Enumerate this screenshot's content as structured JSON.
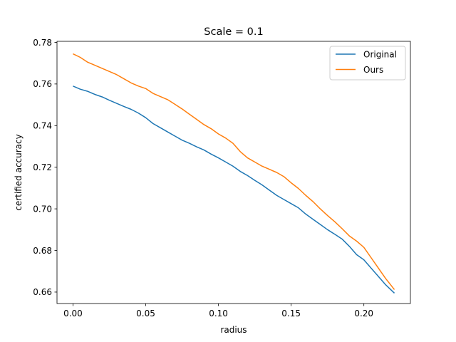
{
  "chart_data": {
    "type": "line",
    "title": "Scale = 0.1",
    "xlabel": "radius",
    "ylabel": "certified accuracy",
    "xlim": [
      -0.011,
      0.232
    ],
    "ylim": [
      0.6545,
      0.7805
    ],
    "xticks": [
      0.0,
      0.05,
      0.1,
      0.15,
      0.2
    ],
    "xtick_labels": [
      "0.00",
      "0.05",
      "0.10",
      "0.15",
      "0.20"
    ],
    "yticks": [
      0.66,
      0.68,
      0.7,
      0.72,
      0.74,
      0.76,
      0.78
    ],
    "ytick_labels": [
      "0.66",
      "0.68",
      "0.70",
      "0.72",
      "0.74",
      "0.76",
      "0.78"
    ],
    "grid": false,
    "legend_position": "top-right",
    "series": [
      {
        "name": "Original",
        "color": "#1f77b4",
        "x": [
          0.0,
          0.005,
          0.01,
          0.015,
          0.02,
          0.025,
          0.03,
          0.035,
          0.04,
          0.045,
          0.05,
          0.055,
          0.06,
          0.065,
          0.07,
          0.075,
          0.08,
          0.085,
          0.09,
          0.095,
          0.1,
          0.105,
          0.11,
          0.115,
          0.12,
          0.125,
          0.13,
          0.135,
          0.14,
          0.145,
          0.15,
          0.155,
          0.16,
          0.165,
          0.17,
          0.175,
          0.18,
          0.185,
          0.19,
          0.195,
          0.2,
          0.205,
          0.21,
          0.215,
          0.221
        ],
        "y": [
          0.759,
          0.7575,
          0.7565,
          0.755,
          0.7538,
          0.7522,
          0.7507,
          0.7492,
          0.7478,
          0.746,
          0.7438,
          0.741,
          0.739,
          0.737,
          0.735,
          0.733,
          0.7315,
          0.7298,
          0.7283,
          0.7263,
          0.7245,
          0.7225,
          0.7205,
          0.718,
          0.716,
          0.7137,
          0.7115,
          0.709,
          0.7065,
          0.7045,
          0.7025,
          0.7005,
          0.6975,
          0.695,
          0.6925,
          0.69,
          0.6878,
          0.6855,
          0.682,
          0.678,
          0.6755,
          0.6715,
          0.6675,
          0.6635,
          0.6595
        ]
      },
      {
        "name": "Ours",
        "color": "#ff7f0e",
        "x": [
          0.0,
          0.005,
          0.01,
          0.015,
          0.02,
          0.025,
          0.03,
          0.035,
          0.04,
          0.045,
          0.05,
          0.055,
          0.06,
          0.065,
          0.07,
          0.075,
          0.08,
          0.085,
          0.09,
          0.095,
          0.1,
          0.105,
          0.11,
          0.115,
          0.12,
          0.125,
          0.13,
          0.135,
          0.14,
          0.145,
          0.15,
          0.155,
          0.16,
          0.165,
          0.17,
          0.175,
          0.18,
          0.185,
          0.19,
          0.195,
          0.2,
          0.205,
          0.21,
          0.215,
          0.221
        ],
        "y": [
          0.7745,
          0.7728,
          0.7705,
          0.769,
          0.7675,
          0.766,
          0.7645,
          0.7625,
          0.7605,
          0.759,
          0.7578,
          0.7555,
          0.754,
          0.7525,
          0.7503,
          0.748,
          0.7455,
          0.743,
          0.7405,
          0.7385,
          0.736,
          0.734,
          0.7315,
          0.7275,
          0.7245,
          0.7225,
          0.7205,
          0.719,
          0.7175,
          0.7155,
          0.7125,
          0.7098,
          0.7065,
          0.7035,
          0.7,
          0.6968,
          0.6938,
          0.6905,
          0.687,
          0.6845,
          0.6815,
          0.6765,
          0.6715,
          0.6665,
          0.6612
        ]
      }
    ]
  }
}
